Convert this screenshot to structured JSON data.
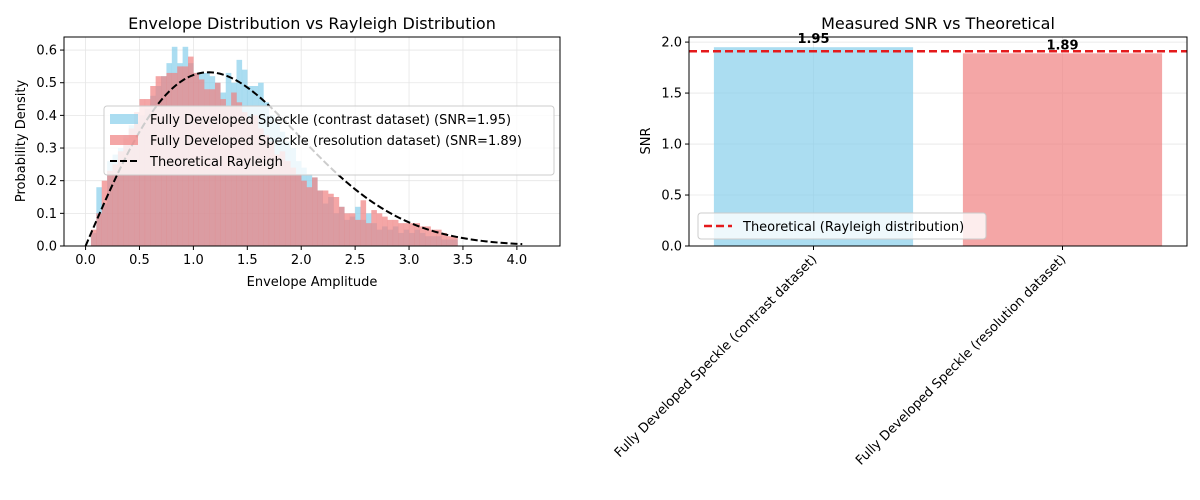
{
  "chart_data": [
    {
      "type": "bar",
      "title": "Envelope Distribution vs Rayleigh Distribution",
      "xlabel": "Envelope Amplitude",
      "ylabel": "Probability Density",
      "xlim": [
        -0.2,
        4.4
      ],
      "ylim": [
        0,
        0.64
      ],
      "xticks": [
        "0.0",
        "0.5",
        "1.0",
        "1.5",
        "2.0",
        "2.5",
        "3.0",
        "3.5",
        "4.0"
      ],
      "yticks": [
        "0.0",
        "0.1",
        "0.2",
        "0.3",
        "0.4",
        "0.5",
        "0.6"
      ],
      "grid": true,
      "legend_position": "center-right",
      "bin_edges": [
        0.05,
        0.1,
        0.15,
        0.2,
        0.25,
        0.3,
        0.35,
        0.4,
        0.45,
        0.5,
        0.55,
        0.6,
        0.65,
        0.7,
        0.75,
        0.8,
        0.85,
        0.9,
        0.95,
        1.0,
        1.05,
        1.1,
        1.15,
        1.2,
        1.25,
        1.3,
        1.35,
        1.4,
        1.45,
        1.5,
        1.55,
        1.6,
        1.65,
        1.7,
        1.75,
        1.8,
        1.85,
        1.9,
        1.95,
        2.0,
        2.05,
        2.1,
        2.15,
        2.2,
        2.25,
        2.3,
        2.35,
        2.4,
        2.45,
        2.5,
        2.55,
        2.6,
        2.65,
        2.7,
        2.75,
        2.8,
        2.85,
        2.9,
        2.95,
        3.0,
        3.05,
        3.1,
        3.15,
        3.2,
        3.25,
        3.3,
        3.35,
        3.4,
        3.45
      ],
      "series": [
        {
          "name": "Fully Developed Speckle (contrast dataset) (SNR=1.95)",
          "color": "#87ceeb",
          "values": [
            0.04,
            0.18,
            0.13,
            0.26,
            0.28,
            0.3,
            0.34,
            0.37,
            0.38,
            0.4,
            0.42,
            0.46,
            0.49,
            0.52,
            0.56,
            0.61,
            0.56,
            0.61,
            0.56,
            0.53,
            0.53,
            0.53,
            0.52,
            0.5,
            0.47,
            0.53,
            0.5,
            0.57,
            0.54,
            0.49,
            0.49,
            0.5,
            0.44,
            0.4,
            0.38,
            0.35,
            0.32,
            0.3,
            0.26,
            0.24,
            0.22,
            0.21,
            0.17,
            0.13,
            0.15,
            0.1,
            0.12,
            0.08,
            0.09,
            0.12,
            0.08,
            0.1,
            0.07,
            0.05,
            0.06,
            0.05,
            0.06,
            0.04,
            0.05,
            0.04,
            0.05,
            0.04,
            0.03,
            0.03,
            0.03,
            0.02,
            0.02,
            0.02
          ]
        },
        {
          "name": "Fully Developed Speckle (resolution dataset) (SNR=1.89)",
          "color": "#f08080",
          "values": [
            0.05,
            0.1,
            0.2,
            0.23,
            0.25,
            0.29,
            0.33,
            0.36,
            0.41,
            0.45,
            0.45,
            0.49,
            0.52,
            0.52,
            0.53,
            0.53,
            0.55,
            0.55,
            0.58,
            0.53,
            0.51,
            0.48,
            0.48,
            0.5,
            0.45,
            0.43,
            0.47,
            0.44,
            0.41,
            0.39,
            0.4,
            0.36,
            0.34,
            0.32,
            0.28,
            0.29,
            0.26,
            0.24,
            0.22,
            0.2,
            0.18,
            0.21,
            0.17,
            0.17,
            0.16,
            0.15,
            0.12,
            0.1,
            0.1,
            0.08,
            0.14,
            0.07,
            0.11,
            0.1,
            0.09,
            0.08,
            0.08,
            0.07,
            0.07,
            0.07,
            0.07,
            0.06,
            0.06,
            0.05,
            0.05,
            0.04,
            0.03,
            0.03
          ]
        }
      ],
      "curve": {
        "name": "Theoretical Rayleigh",
        "type": "line",
        "style": "dashed",
        "color": "#000000",
        "sigma": 1.14,
        "x_range": [
          0,
          4.05
        ]
      }
    },
    {
      "type": "bar",
      "title": "Measured SNR vs Theoretical",
      "xlabel": "",
      "ylabel": "SNR",
      "ylim": [
        0,
        2.05
      ],
      "yticks": [
        "0.0",
        "0.5",
        "1.0",
        "1.5",
        "2.0"
      ],
      "grid": true,
      "legend_position": "lower-left",
      "categories": [
        "Fully Developed Speckle (contrast dataset)",
        "Fully Developed Speckle (resolution dataset)"
      ],
      "values": [
        1.95,
        1.89
      ],
      "value_labels": [
        "1.95",
        "1.89"
      ],
      "colors": [
        "#87ceeb",
        "#f08080"
      ],
      "reference_line": {
        "name": "Theoretical (Rayleigh distribution)",
        "value": 1.91,
        "style": "dashed",
        "color": "#e41a1c"
      }
    }
  ]
}
